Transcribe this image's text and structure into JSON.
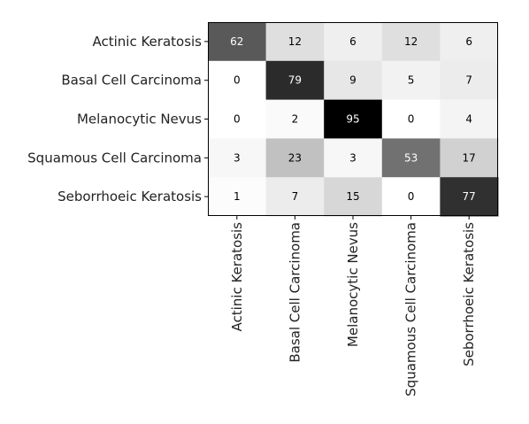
{
  "chart_data": {
    "type": "heatmap",
    "title": "",
    "xlabel": "",
    "ylabel": "",
    "rows": [
      "Actinic Keratosis",
      "Basal Cell Carcinoma",
      "Melanocytic Nevus",
      "Squamous Cell Carcinoma",
      "Seborrhoeic Keratosis"
    ],
    "columns": [
      "Actinic Keratosis",
      "Basal Cell Carcinoma",
      "Melanocytic Nevus",
      "Squamous Cell Carcinoma",
      "Seborrhoeic Keratosis"
    ],
    "values": [
      [
        62,
        12,
        6,
        12,
        6
      ],
      [
        0,
        79,
        9,
        5,
        7
      ],
      [
        0,
        2,
        95,
        0,
        4
      ],
      [
        3,
        23,
        3,
        53,
        17
      ],
      [
        1,
        7,
        15,
        0,
        77
      ]
    ],
    "color_scale": {
      "min": 0,
      "max": 95,
      "low_color": "#ffffff",
      "high_color": "#000000"
    },
    "colorbar": false,
    "grid": false
  }
}
